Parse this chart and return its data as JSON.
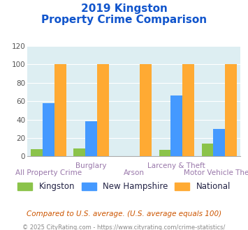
{
  "title_line1": "2019 Kingston",
  "title_line2": "Property Crime Comparison",
  "categories": [
    "All Property Crime",
    "Burglary",
    "Arson",
    "Larceny & Theft",
    "Motor Vehicle Theft"
  ],
  "kingston": [
    8,
    9,
    0,
    7,
    14
  ],
  "new_hampshire": [
    58,
    38,
    0,
    66,
    30
  ],
  "national": [
    100,
    100,
    100,
    100,
    100
  ],
  "color_kingston": "#8bc34a",
  "color_nh": "#4499ff",
  "color_national": "#ffaa33",
  "ylim": [
    0,
    120
  ],
  "yticks": [
    0,
    20,
    40,
    60,
    80,
    100,
    120
  ],
  "plot_bg": "#ddeef2",
  "title_color": "#1155cc",
  "xlabel_color": "#9977aa",
  "footer_text": "Compared to U.S. average. (U.S. average equals 100)",
  "footer2_text": "© 2025 CityRating.com - https://www.cityrating.com/crime-statistics/",
  "legend_labels": [
    "Kingston",
    "New Hampshire",
    "National"
  ],
  "bar_width": 0.22,
  "group_positions": [
    0.35,
    1.15,
    1.95,
    2.75,
    3.55
  ],
  "cat_labels_top": [
    "",
    "Burglary",
    "",
    "Larceny & Theft",
    ""
  ],
  "cat_labels_bot": [
    "All Property Crime",
    "",
    "Arson",
    "",
    "Motor Vehicle Theft"
  ]
}
